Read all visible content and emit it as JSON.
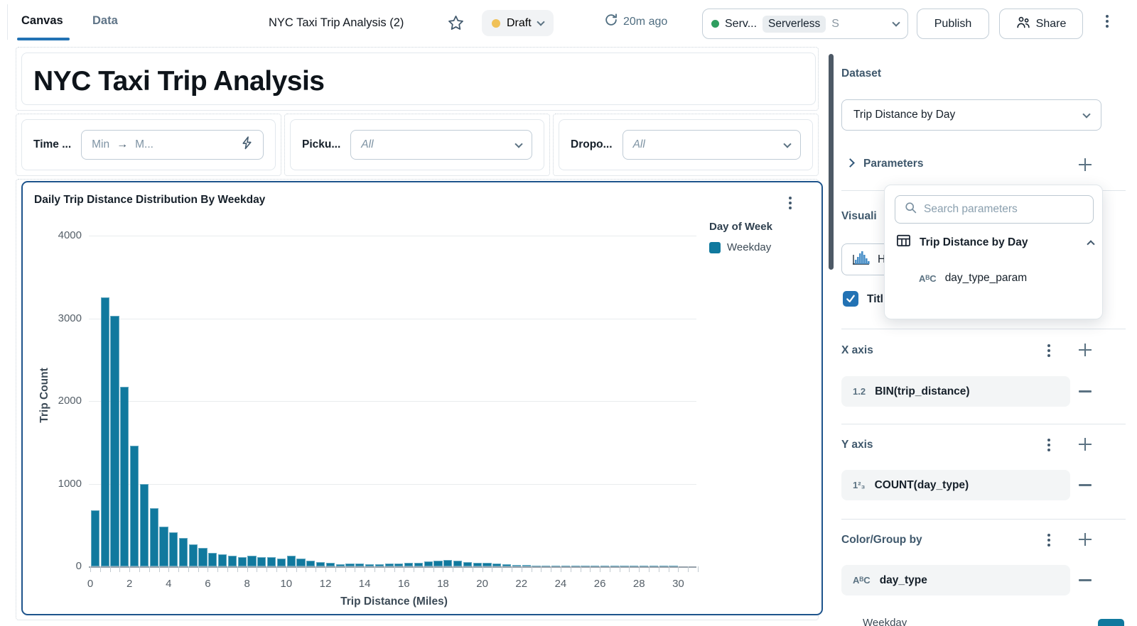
{
  "topbar": {
    "tab_canvas": "Canvas",
    "tab_data": "Data",
    "title": "NYC Taxi Trip Analysis (2)",
    "draft_label": "Draft",
    "refreshed": "20m ago",
    "compute_prefix": "Serv...",
    "compute_badge": "Serverless",
    "compute_suffix": "S",
    "publish_label": "Publish",
    "share_label": "Share",
    "colors": {
      "accent": "#2272B4",
      "draft_dot": "#f0c157",
      "compute_dot": "#2f9e5f"
    }
  },
  "canvas": {
    "page_title": "NYC Taxi Trip Analysis",
    "filters": [
      {
        "label": "Time ...",
        "min_placeholder": "Min",
        "max_placeholder": "M...",
        "arrow": "→"
      },
      {
        "label": "Picku...",
        "value": "All"
      },
      {
        "label": "Dropo...",
        "value": "All"
      }
    ]
  },
  "chart_data": {
    "type": "bar",
    "title": "Daily Trip Distance Distribution By Weekday",
    "xlabel": "Trip Distance (Miles)",
    "ylabel": "Trip Count",
    "legend_title": "Day of Week",
    "legend_position": "right",
    "grid": true,
    "series": [
      {
        "name": "Weekday",
        "color": "#10799e"
      }
    ],
    "x_start": 0,
    "bin_width_miles": 0.5,
    "values": [
      680,
      3250,
      3030,
      2170,
      1460,
      1000,
      700,
      480,
      410,
      340,
      270,
      225,
      165,
      150,
      125,
      110,
      125,
      115,
      110,
      95,
      130,
      95,
      65,
      55,
      40,
      25,
      35,
      35,
      30,
      25,
      35,
      35,
      40,
      40,
      60,
      70,
      75,
      70,
      55,
      45,
      40,
      35,
      30,
      20,
      15,
      10,
      8,
      6,
      5,
      8,
      10,
      6,
      5,
      4,
      3,
      3,
      2,
      2,
      2,
      2
    ],
    "y_ticks": [
      0,
      1000,
      2000,
      3000,
      4000
    ],
    "x_ticks": [
      0,
      2,
      4,
      6,
      8,
      10,
      12,
      14,
      16,
      18,
      20,
      22,
      24,
      26,
      28,
      30
    ],
    "ylim": [
      0,
      4000
    ],
    "xlim": [
      0,
      31
    ]
  },
  "sidebar": {
    "dataset_label": "Dataset",
    "dataset_value": "Trip Distance by Day",
    "parameters_label": "Parameters",
    "visualization_label": "Visuali",
    "viz_type_label": "H",
    "title_checkbox_label": "Titl",
    "popover": {
      "search_placeholder": "Search parameters",
      "dataset_name": "Trip Distance by Day",
      "param_name": "day_type_param",
      "param_type_icon": "AᴮC"
    },
    "x_axis_label": "X axis",
    "x_field": "BIN(trip_distance)",
    "x_field_type_icon": "1.2",
    "y_axis_label": "Y axis",
    "y_field": "COUNT(day_type)",
    "y_field_type_icon": "1²₃",
    "color_label": "Color/Group by",
    "color_field": "day_type",
    "color_field_type_icon": "AᴮC",
    "series_color_label": "Weekday"
  }
}
